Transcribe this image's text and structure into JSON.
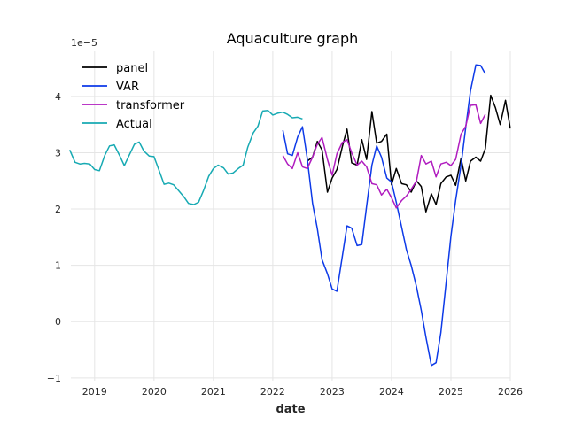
{
  "chart_data": {
    "type": "line",
    "title": "Aquaculture graph",
    "xlabel": "date",
    "ylabel": "",
    "y_offset_label": "1e−5",
    "xlim": [
      2018.6,
      2026.0
    ],
    "ylim": [
      -1.05,
      4.8
    ],
    "x_ticks": [
      2019,
      2020,
      2021,
      2022,
      2023,
      2024,
      2025,
      2026
    ],
    "x_tick_labels": [
      "2019",
      "2020",
      "2021",
      "2022",
      "2023",
      "2024",
      "2025",
      "2026"
    ],
    "y_ticks": [
      -1,
      0,
      1,
      2,
      3,
      4
    ],
    "y_tick_labels": [
      "−1",
      "0",
      "1",
      "2",
      "3",
      "4"
    ],
    "grid": true,
    "legend_position": "top-left",
    "series": [
      {
        "name": "panel",
        "color": "#000000",
        "points": [
          [
            2022.58,
            2.85
          ],
          [
            2022.67,
            2.92
          ],
          [
            2022.75,
            3.2
          ],
          [
            2022.83,
            3.05
          ],
          [
            2022.92,
            2.3
          ],
          [
            2023.0,
            2.55
          ],
          [
            2023.08,
            2.7
          ],
          [
            2023.17,
            3.1
          ],
          [
            2023.25,
            3.42
          ],
          [
            2023.33,
            2.82
          ],
          [
            2023.42,
            2.78
          ],
          [
            2023.5,
            3.23
          ],
          [
            2023.58,
            2.88
          ],
          [
            2023.67,
            3.73
          ],
          [
            2023.75,
            3.17
          ],
          [
            2023.83,
            3.2
          ],
          [
            2023.92,
            3.33
          ],
          [
            2024.0,
            2.43
          ],
          [
            2024.08,
            2.72
          ],
          [
            2024.17,
            2.45
          ],
          [
            2024.25,
            2.43
          ],
          [
            2024.33,
            2.3
          ],
          [
            2024.42,
            2.5
          ],
          [
            2024.5,
            2.4
          ],
          [
            2024.58,
            1.95
          ],
          [
            2024.67,
            2.27
          ],
          [
            2024.75,
            2.08
          ],
          [
            2024.83,
            2.45
          ],
          [
            2024.92,
            2.57
          ],
          [
            2025.0,
            2.6
          ],
          [
            2025.08,
            2.42
          ],
          [
            2025.17,
            2.9
          ],
          [
            2025.25,
            2.5
          ],
          [
            2025.33,
            2.85
          ],
          [
            2025.42,
            2.92
          ],
          [
            2025.5,
            2.85
          ],
          [
            2025.58,
            3.07
          ],
          [
            2025.67,
            4.02
          ],
          [
            2025.75,
            3.8
          ],
          [
            2025.83,
            3.5
          ],
          [
            2025.92,
            3.93
          ],
          [
            2026.0,
            3.43
          ]
        ]
      },
      {
        "name": "VAR",
        "color": "#0d3ae8",
        "points": [
          [
            2022.17,
            3.4
          ],
          [
            2022.25,
            2.98
          ],
          [
            2022.33,
            2.95
          ],
          [
            2022.42,
            3.28
          ],
          [
            2022.5,
            3.46
          ],
          [
            2022.58,
            2.9
          ],
          [
            2022.67,
            2.1
          ],
          [
            2022.75,
            1.65
          ],
          [
            2022.83,
            1.1
          ],
          [
            2022.92,
            0.85
          ],
          [
            2023.0,
            0.58
          ],
          [
            2023.08,
            0.54
          ],
          [
            2023.17,
            1.15
          ],
          [
            2023.25,
            1.7
          ],
          [
            2023.33,
            1.66
          ],
          [
            2023.42,
            1.35
          ],
          [
            2023.5,
            1.37
          ],
          [
            2023.58,
            2.05
          ],
          [
            2023.67,
            2.78
          ],
          [
            2023.75,
            3.12
          ],
          [
            2023.83,
            2.92
          ],
          [
            2023.92,
            2.55
          ],
          [
            2024.0,
            2.48
          ],
          [
            2024.08,
            2.12
          ],
          [
            2024.17,
            1.68
          ],
          [
            2024.25,
            1.28
          ],
          [
            2024.33,
            1.0
          ],
          [
            2024.42,
            0.62
          ],
          [
            2024.5,
            0.2
          ],
          [
            2024.58,
            -0.28
          ],
          [
            2024.67,
            -0.78
          ],
          [
            2024.75,
            -0.73
          ],
          [
            2024.83,
            -0.2
          ],
          [
            2024.92,
            0.7
          ],
          [
            2025.0,
            1.52
          ],
          [
            2025.08,
            2.15
          ],
          [
            2025.17,
            2.78
          ],
          [
            2025.25,
            3.45
          ],
          [
            2025.33,
            4.1
          ],
          [
            2025.42,
            4.56
          ],
          [
            2025.5,
            4.55
          ],
          [
            2025.58,
            4.4
          ]
        ]
      },
      {
        "name": "transformer",
        "color": "#b01cbf",
        "points": [
          [
            2022.17,
            2.95
          ],
          [
            2022.25,
            2.8
          ],
          [
            2022.33,
            2.72
          ],
          [
            2022.42,
            3.0
          ],
          [
            2022.5,
            2.75
          ],
          [
            2022.58,
            2.72
          ],
          [
            2022.67,
            2.92
          ],
          [
            2022.75,
            3.15
          ],
          [
            2022.83,
            3.27
          ],
          [
            2022.92,
            2.88
          ],
          [
            2023.0,
            2.6
          ],
          [
            2023.08,
            2.98
          ],
          [
            2023.17,
            3.18
          ],
          [
            2023.25,
            3.23
          ],
          [
            2023.33,
            3.0
          ],
          [
            2023.42,
            2.78
          ],
          [
            2023.5,
            2.85
          ],
          [
            2023.58,
            2.75
          ],
          [
            2023.67,
            2.45
          ],
          [
            2023.75,
            2.43
          ],
          [
            2023.83,
            2.25
          ],
          [
            2023.92,
            2.35
          ],
          [
            2024.0,
            2.2
          ],
          [
            2024.08,
            2.02
          ],
          [
            2024.17,
            2.15
          ],
          [
            2024.25,
            2.23
          ],
          [
            2024.33,
            2.35
          ],
          [
            2024.42,
            2.5
          ],
          [
            2024.5,
            2.95
          ],
          [
            2024.58,
            2.8
          ],
          [
            2024.67,
            2.85
          ],
          [
            2024.75,
            2.57
          ],
          [
            2024.83,
            2.8
          ],
          [
            2024.92,
            2.83
          ],
          [
            2025.0,
            2.77
          ],
          [
            2025.08,
            2.88
          ],
          [
            2025.17,
            3.33
          ],
          [
            2025.25,
            3.47
          ],
          [
            2025.33,
            3.84
          ],
          [
            2025.42,
            3.85
          ],
          [
            2025.5,
            3.52
          ],
          [
            2025.58,
            3.68
          ]
        ]
      },
      {
        "name": "Actual",
        "color": "#17aab3",
        "points": [
          [
            2018.58,
            3.05
          ],
          [
            2018.67,
            2.83
          ],
          [
            2018.75,
            2.8
          ],
          [
            2018.83,
            2.81
          ],
          [
            2018.92,
            2.8
          ],
          [
            2019.0,
            2.7
          ],
          [
            2019.08,
            2.68
          ],
          [
            2019.17,
            2.95
          ],
          [
            2019.25,
            3.12
          ],
          [
            2019.33,
            3.14
          ],
          [
            2019.42,
            2.95
          ],
          [
            2019.5,
            2.77
          ],
          [
            2019.58,
            2.95
          ],
          [
            2019.67,
            3.15
          ],
          [
            2019.75,
            3.19
          ],
          [
            2019.83,
            3.03
          ],
          [
            2019.92,
            2.94
          ],
          [
            2020.0,
            2.93
          ],
          [
            2020.08,
            2.7
          ],
          [
            2020.17,
            2.44
          ],
          [
            2020.25,
            2.46
          ],
          [
            2020.33,
            2.43
          ],
          [
            2020.42,
            2.32
          ],
          [
            2020.5,
            2.22
          ],
          [
            2020.58,
            2.1
          ],
          [
            2020.67,
            2.08
          ],
          [
            2020.75,
            2.12
          ],
          [
            2020.83,
            2.32
          ],
          [
            2020.92,
            2.58
          ],
          [
            2021.0,
            2.72
          ],
          [
            2021.08,
            2.78
          ],
          [
            2021.17,
            2.73
          ],
          [
            2021.25,
            2.62
          ],
          [
            2021.33,
            2.64
          ],
          [
            2021.42,
            2.72
          ],
          [
            2021.5,
            2.78
          ],
          [
            2021.58,
            3.1
          ],
          [
            2021.67,
            3.35
          ],
          [
            2021.75,
            3.47
          ],
          [
            2021.83,
            3.74
          ],
          [
            2021.92,
            3.75
          ],
          [
            2022.0,
            3.67
          ],
          [
            2022.08,
            3.7
          ],
          [
            2022.17,
            3.72
          ],
          [
            2022.25,
            3.68
          ],
          [
            2022.33,
            3.62
          ],
          [
            2022.42,
            3.63
          ],
          [
            2022.5,
            3.6
          ]
        ]
      }
    ]
  }
}
